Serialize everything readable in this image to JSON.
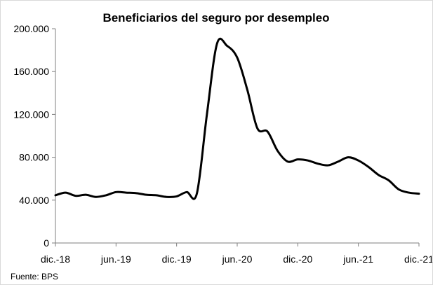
{
  "chart_data": {
    "type": "line",
    "title": "Beneficiarios del seguro por desempleo",
    "xlabel": "",
    "ylabel": "",
    "ylim": [
      0,
      200000
    ],
    "yticks": [
      0,
      40000,
      80000,
      120000,
      160000,
      200000
    ],
    "ytick_labels": [
      "0",
      "40.000",
      "80.000",
      "120.000",
      "160.000",
      "200.000"
    ],
    "xtick_labels": [
      "dic.-18",
      "jun.-19",
      "dic.-19",
      "jun.-20",
      "dic.-20",
      "jun.-21",
      "dic.-21"
    ],
    "x": [
      "dic.-18",
      "ene.-19",
      "feb.-19",
      "mar.-19",
      "abr.-19",
      "may.-19",
      "jun.-19",
      "jul.-19",
      "ago.-19",
      "sep.-19",
      "oct.-19",
      "nov.-19",
      "dic.-19",
      "ene.-20",
      "feb.-20",
      "mar.-20",
      "abr.-20",
      "may.-20",
      "jun.-20",
      "jul.-20",
      "ago.-20",
      "sep.-20",
      "oct.-20",
      "nov.-20",
      "dic.-20",
      "ene.-21",
      "feb.-21",
      "mar.-21",
      "abr.-21",
      "may.-21",
      "jun.-21",
      "jul.-21",
      "ago.-21",
      "sep.-21",
      "oct.-21",
      "nov.-21",
      "dic.-21"
    ],
    "series": [
      {
        "name": "Beneficiarios",
        "color": "#000000",
        "values": [
          44500,
          47000,
          44000,
          45000,
          43000,
          44500,
          47500,
          47000,
          46500,
          45000,
          44500,
          43000,
          43500,
          47500,
          46000,
          120000,
          186000,
          184000,
          173000,
          143000,
          107000,
          104000,
          86000,
          76000,
          78000,
          77000,
          74000,
          72500,
          76000,
          80000,
          77000,
          71000,
          63500,
          58500,
          50000,
          47000,
          46000
        ]
      }
    ],
    "grid": false,
    "legend": "none"
  },
  "footer": {
    "source": "Fuente: BPS"
  }
}
